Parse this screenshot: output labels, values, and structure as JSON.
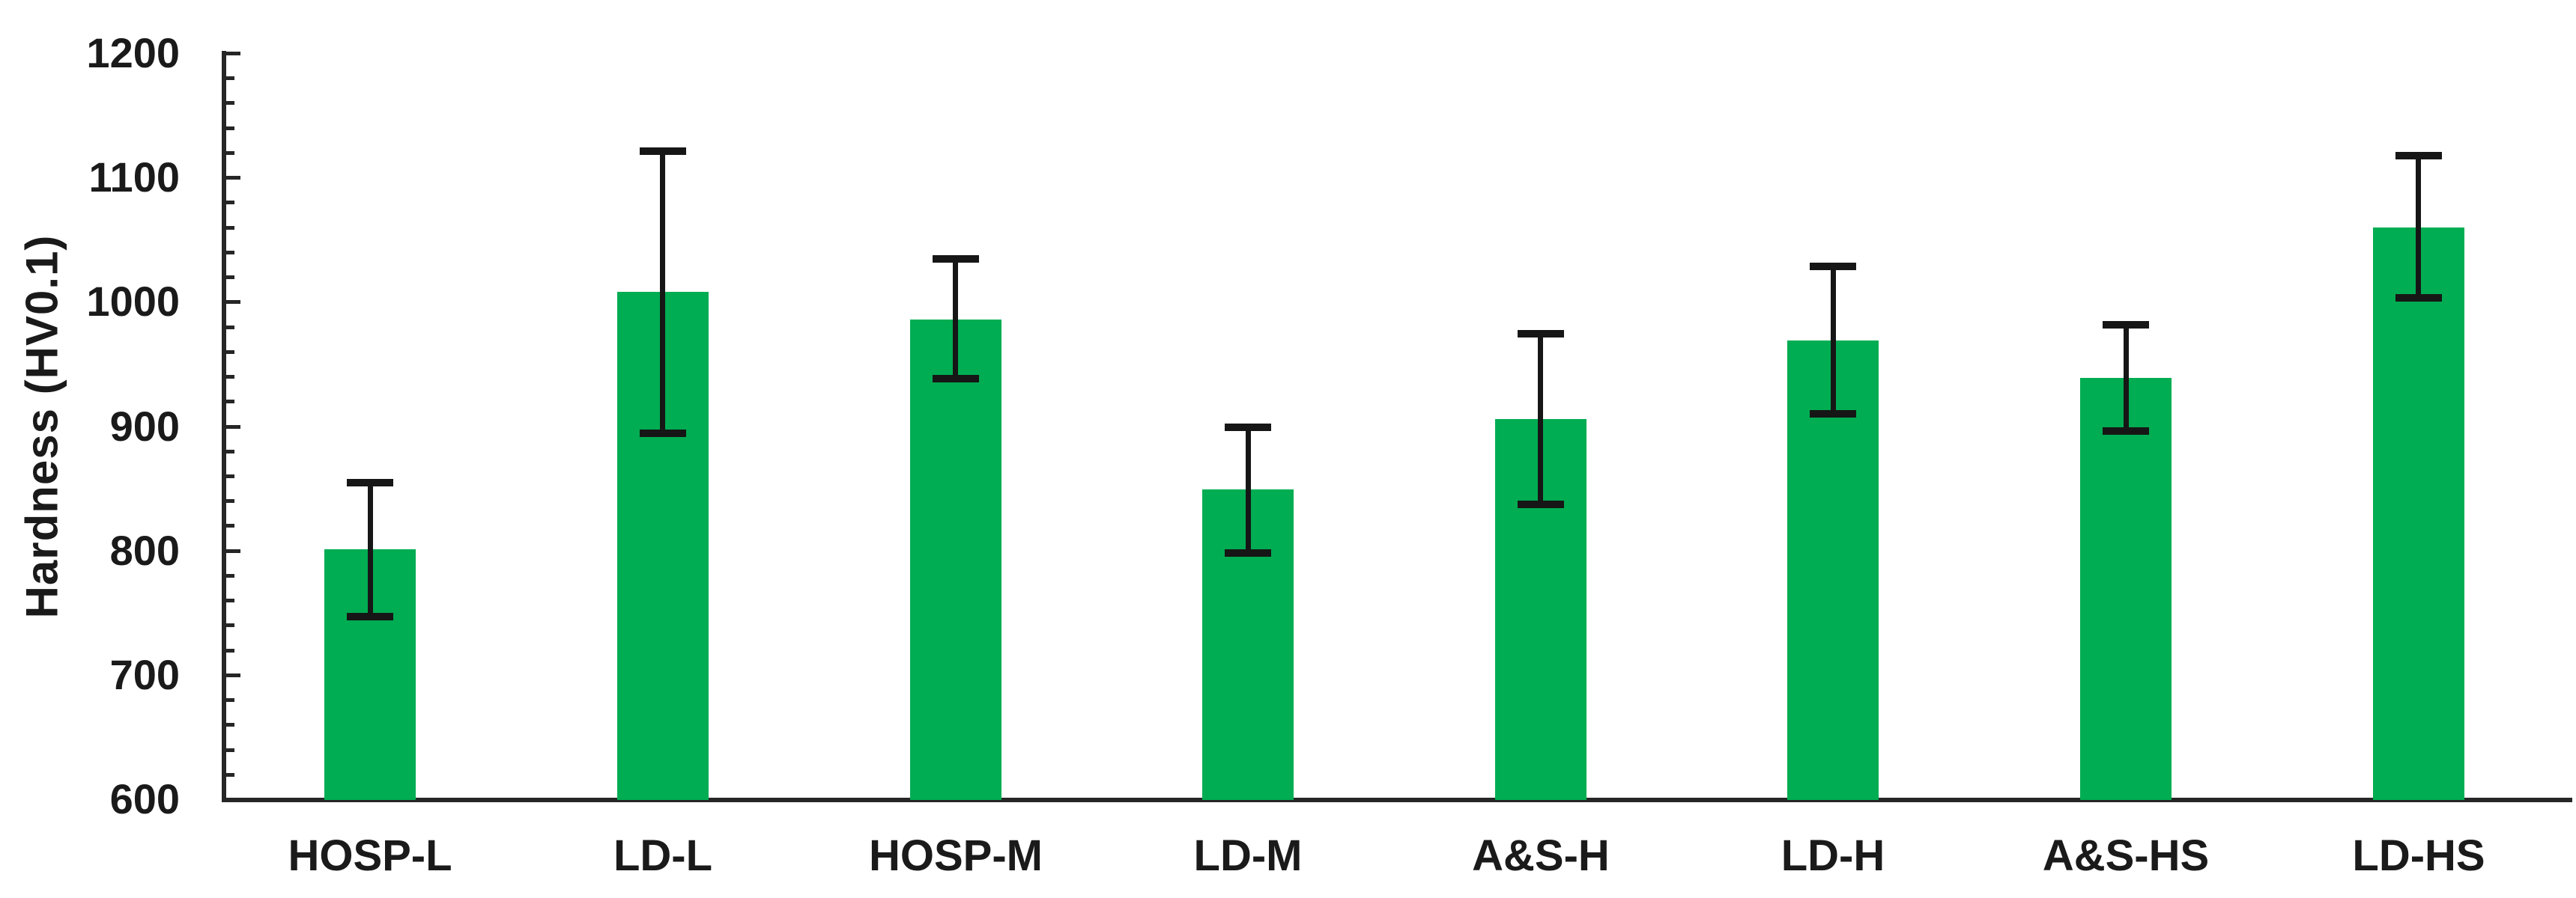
{
  "chart_data": {
    "type": "bar",
    "ylabel": "Hardness (HV0.1)",
    "xlabel": "",
    "ylim": [
      600,
      1200
    ],
    "ytick_step": 100,
    "minor_tick_step": 20,
    "yticks": [
      600,
      700,
      800,
      900,
      1000,
      1100,
      1200
    ],
    "categories": [
      "HOSP-L",
      "LD-L",
      "HOSP-M",
      "LD-M",
      "A&S-H",
      "LD-H",
      "A&S-HS",
      "LD-HS"
    ],
    "values": [
      801,
      1008,
      986,
      849,
      906,
      969,
      939,
      1060
    ],
    "error_bars": {
      "upper": [
        855,
        1122,
        1035,
        900,
        975,
        1029,
        982,
        1118
      ],
      "lower": [
        747,
        894,
        938,
        798,
        837,
        910,
        896,
        1003
      ]
    },
    "grid": false,
    "legend": null,
    "colors": {
      "bar_fill": "#00ad52",
      "error_bar": "#161616",
      "axis": "#262626",
      "text": "#1a1a1a"
    }
  }
}
